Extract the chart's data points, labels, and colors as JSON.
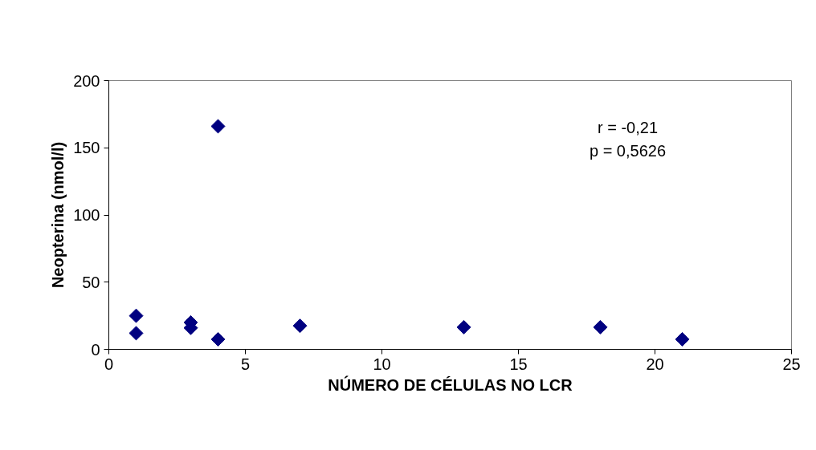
{
  "chart_data": {
    "type": "scatter",
    "xlabel": "NÚMERO DE CÉLULAS NO LCR",
    "ylabel": "Neopterina (nmol/l)",
    "annotations": [
      "r = -0,21",
      "p = 0,5626"
    ],
    "x": [
      1,
      1,
      3,
      3,
      4,
      4,
      7,
      13,
      18,
      21
    ],
    "series": [
      {
        "color": "#000080",
        "values": [
          25,
          12,
          20,
          16,
          166,
          7.5,
          17.5,
          16.5,
          16.5,
          7.5
        ]
      }
    ],
    "xlim": [
      0,
      25
    ],
    "ylim": [
      0,
      200
    ],
    "xticks": [
      0,
      5,
      10,
      15,
      20,
      25
    ],
    "yticks": [
      0,
      50,
      100,
      150,
      200
    ],
    "marker": "diamond",
    "grid": false
  }
}
